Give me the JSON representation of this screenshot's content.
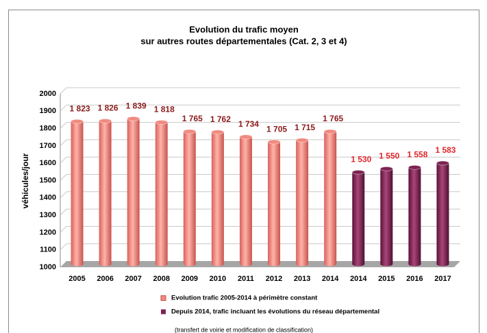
{
  "chart_data": {
    "type": "bar",
    "title": "Evolution du trafic moyen",
    "subtitle": "sur autres routes départementales (Cat. 2, 3 et 4)",
    "y_label": "véhicules/jour",
    "categories": [
      "2005",
      "2006",
      "2007",
      "2008",
      "2009",
      "2010",
      "2011",
      "2012",
      "2013",
      "2014",
      "2014",
      "2015",
      "2016",
      "2017"
    ],
    "series": [
      {
        "name": "Evolution trafic 2005-2014 à périmètre constant",
        "color": "#f08a80",
        "label_color": "#8b1a1a",
        "values": [
          1823,
          1826,
          1839,
          1818,
          1765,
          1762,
          1734,
          1705,
          1715,
          1765,
          null,
          null,
          null,
          null
        ],
        "value_labels": [
          "1 823",
          "1 826",
          "1 839",
          "1 818",
          "1 765",
          "1 762",
          "1 734",
          "1 705",
          "1 715",
          "1 765",
          null,
          null,
          null,
          null
        ]
      },
      {
        "name": "Depuis 2014, trafic incluant les évolutions du réseau départemental",
        "color": "#7d2452",
        "label_color": "#e3262b",
        "values": [
          null,
          null,
          null,
          null,
          null,
          null,
          null,
          null,
          null,
          null,
          1530,
          1550,
          1558,
          1583
        ],
        "value_labels": [
          null,
          null,
          null,
          null,
          null,
          null,
          null,
          null,
          null,
          null,
          "1 530",
          "1 550",
          "1 558",
          "1 583"
        ]
      }
    ],
    "legend_note": "(transfert de voirie et modification de classification)",
    "ylim": [
      1000,
      2000
    ],
    "yticks": [
      1000,
      1100,
      1200,
      1300,
      1400,
      1500,
      1600,
      1700,
      1800,
      1900,
      2000
    ],
    "grid": true
  }
}
